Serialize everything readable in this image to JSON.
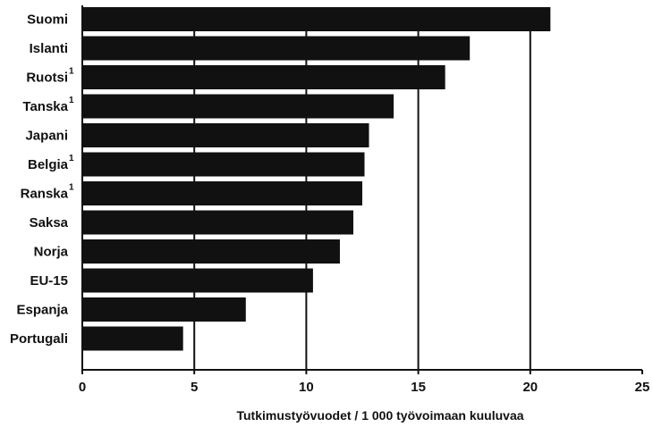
{
  "chart_data": {
    "type": "bar",
    "orientation": "horizontal",
    "categories": [
      {
        "label": "Suomi",
        "footnote": ""
      },
      {
        "label": "Islanti",
        "footnote": ""
      },
      {
        "label": "Ruotsi",
        "footnote": "1"
      },
      {
        "label": "Tanska",
        "footnote": "1"
      },
      {
        "label": "Japani",
        "footnote": ""
      },
      {
        "label": "Belgia",
        "footnote": "1"
      },
      {
        "label": "Ranska",
        "footnote": "1"
      },
      {
        "label": "Saksa",
        "footnote": ""
      },
      {
        "label": "Norja",
        "footnote": ""
      },
      {
        "label": "EU-15",
        "footnote": ""
      },
      {
        "label": "Espanja",
        "footnote": ""
      },
      {
        "label": "Portugali",
        "footnote": ""
      }
    ],
    "values": [
      20.9,
      17.3,
      16.2,
      13.9,
      12.8,
      12.6,
      12.5,
      12.1,
      11.5,
      10.3,
      7.3,
      4.5
    ],
    "xlabel": "Tutkimustyövuodet / 1 000 työvoimaan kuuluvaa",
    "ylabel": "",
    "xlim": [
      0,
      25
    ],
    "xticks": [
      "0",
      "5",
      "10",
      "15",
      "20",
      "25"
    ],
    "grid": "vertical",
    "bar_color": "#111111",
    "grid_color": "#111111"
  }
}
